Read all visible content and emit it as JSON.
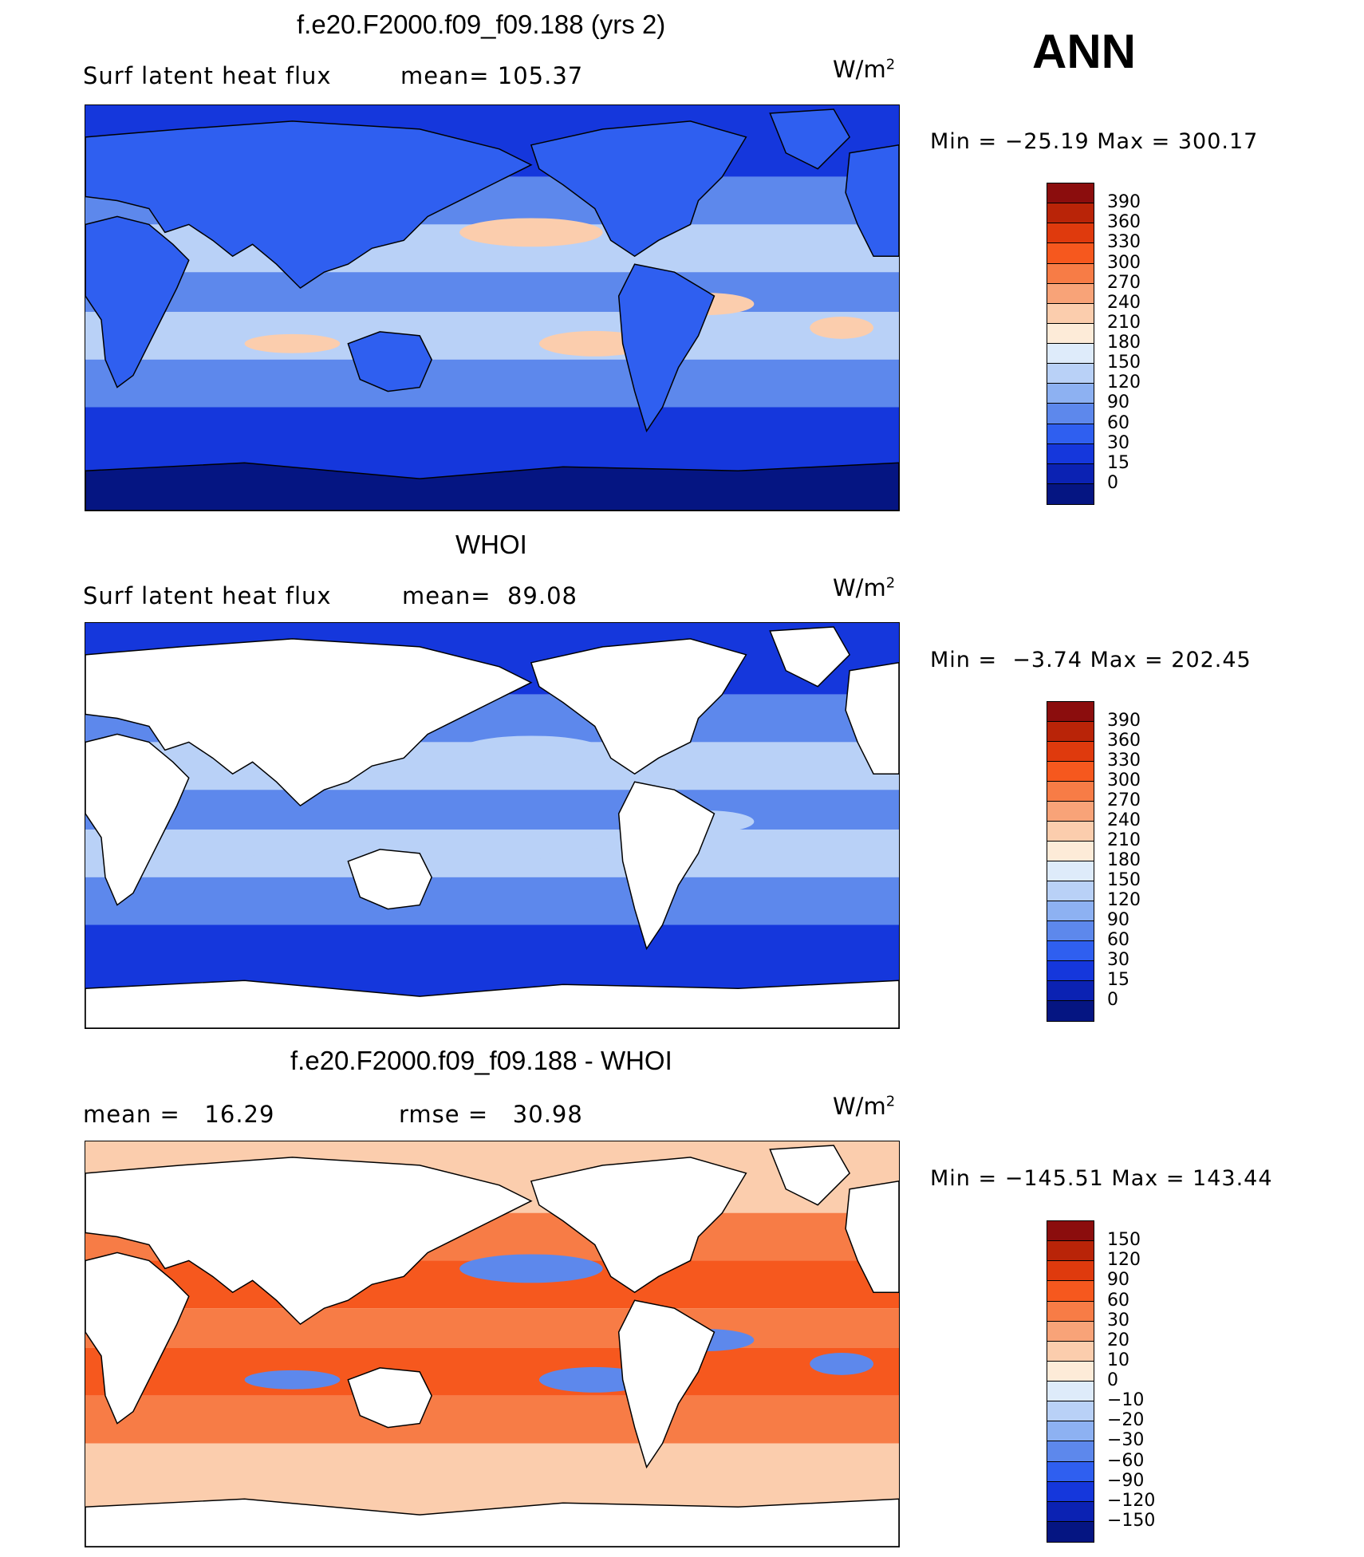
{
  "season_label": "ANN",
  "chart_data": [
    {
      "type": "heatmap",
      "title": "f.e20.F2000.f09_f09.188 (yrs 2)",
      "variable": "Surf latent heat flux",
      "stat_left": "mean=",
      "stat_left_value": "105.37",
      "units": "W/m",
      "units_exp": "2",
      "min_label": "Min",
      "min": "−25.19",
      "max_label": "Max",
      "max": "300.17",
      "colorbar": {
        "labels": [
          "390",
          "360",
          "330",
          "300",
          "270",
          "240",
          "210",
          "180",
          "150",
          "120",
          "90",
          "60",
          "30",
          "15",
          "0"
        ],
        "colors": [
          "#8b0d0d",
          "#b92408",
          "#df3a0d",
          "#f6581e",
          "#f77c46",
          "#f8a378",
          "#fbcdad",
          "#fdebd8",
          "#deebfa",
          "#b9d1f7",
          "#8db1f2",
          "#5d88ec",
          "#2f5ff0",
          "#1537dc",
          "#0b22b3",
          "#051582"
        ]
      },
      "map_palette": {
        "ocean_low": "#1537dc",
        "ocean_mid": "#5d88ec",
        "ocean_high": "#b9d1f7",
        "warm": "#fbcdad",
        "land": "#2f5ff0",
        "ice": "#051582"
      }
    },
    {
      "type": "heatmap",
      "title": "WHOI",
      "variable": "Surf latent heat flux",
      "stat_left": "mean=",
      "stat_left_value": "89.08",
      "units": "W/m",
      "units_exp": "2",
      "min_label": "Min",
      "min": "−3.74",
      "max_label": "Max",
      "max": "202.45",
      "colorbar": {
        "labels": [
          "390",
          "360",
          "330",
          "300",
          "270",
          "240",
          "210",
          "180",
          "150",
          "120",
          "90",
          "60",
          "30",
          "15",
          "0"
        ],
        "colors": [
          "#8b0d0d",
          "#b92408",
          "#df3a0d",
          "#f6581e",
          "#f77c46",
          "#f8a378",
          "#fbcdad",
          "#fdebd8",
          "#deebfa",
          "#b9d1f7",
          "#8db1f2",
          "#5d88ec",
          "#2f5ff0",
          "#1537dc",
          "#0b22b3",
          "#051582"
        ]
      },
      "map_palette": {
        "ocean_low": "#1537dc",
        "ocean_mid": "#5d88ec",
        "ocean_high": "#b9d1f7",
        "warm": "#b9d1f7",
        "land": "#ffffff",
        "ice": "#ffffff"
      }
    },
    {
      "type": "heatmap",
      "title": "f.e20.F2000.f09_f09.188 - WHOI",
      "stat_left": "mean =",
      "stat_left_value": "16.29",
      "stat_right": "rmse =",
      "stat_right_value": "30.98",
      "units": "W/m",
      "units_exp": "2",
      "min_label": "Min",
      "min": "−145.51",
      "max_label": "Max",
      "max": "143.44",
      "colorbar": {
        "labels": [
          "150",
          "120",
          "90",
          "60",
          "30",
          "20",
          "10",
          "0",
          "−10",
          "−20",
          "−30",
          "−60",
          "−90",
          "−120",
          "−150"
        ],
        "colors": [
          "#8b0d0d",
          "#b92408",
          "#df3a0d",
          "#f6581e",
          "#f77c46",
          "#f8a378",
          "#fbcdad",
          "#fdebd8",
          "#deebfa",
          "#b9d1f7",
          "#8db1f2",
          "#5d88ec",
          "#2f5ff0",
          "#1537dc",
          "#0b22b3",
          "#051582"
        ]
      },
      "map_palette": {
        "ocean_low": "#fbcdad",
        "ocean_mid": "#f77c46",
        "ocean_high": "#f6581e",
        "warm": "#5d88ec",
        "land": "#ffffff",
        "ice": "#ffffff"
      }
    }
  ]
}
